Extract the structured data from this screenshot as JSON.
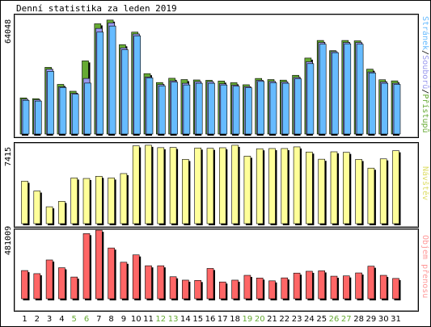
{
  "title": "Denní statistika za leden 2019",
  "colors": {
    "pristupu": "#66aa33",
    "souboru": "#9999ee",
    "stranek": "#66bbff",
    "navstev": "#ffff99",
    "prenos": "#ff6666",
    "weekend_label": "#66aa33",
    "weekday_label": "#000000"
  },
  "chart_data": [
    {
      "type": "bar",
      "name": "traffic",
      "ylabel": "64048",
      "ymax": 64048,
      "categories": [
        "1",
        "2",
        "3",
        "4",
        "5",
        "6",
        "7",
        "8",
        "9",
        "10",
        "11",
        "12",
        "13",
        "14",
        "15",
        "16",
        "17",
        "18",
        "19",
        "20",
        "21",
        "22",
        "23",
        "24",
        "25",
        "26",
        "27",
        "28",
        "29",
        "30",
        "31"
      ],
      "weekend_days": [
        "5",
        "6",
        "12",
        "13",
        "19",
        "20",
        "26",
        "27"
      ],
      "legend": [
        {
          "text": "Stránek",
          "color": "#66bbff"
        },
        {
          "text": "/",
          "color": "#000000"
        },
        {
          "text": "Souborů",
          "color": "#9999ee"
        },
        {
          "text": "/",
          "color": "#000000"
        },
        {
          "text": "Přístupů",
          "color": "#66aa33"
        }
      ],
      "series": [
        {
          "name": "Přístupů",
          "values": [
            19500,
            19100,
            36000,
            26800,
            23100,
            39500,
            59500,
            61500,
            48200,
            55000,
            32600,
            27800,
            30100,
            29400,
            29200,
            29000,
            28600,
            27700,
            26600,
            30000,
            29400,
            29100,
            31700,
            41000,
            50500,
            45000,
            50500,
            50300,
            35000,
            29300,
            28700
          ]
        },
        {
          "name": "Souborů",
          "values": [
            18800,
            18500,
            35000,
            25500,
            22000,
            30000,
            57000,
            60000,
            46500,
            54000,
            30800,
            26700,
            28700,
            27400,
            28300,
            28300,
            27100,
            26400,
            25600,
            29000,
            28400,
            28100,
            30500,
            39000,
            49400,
            44500,
            49400,
            49400,
            33500,
            28100,
            27400
          ]
        },
        {
          "name": "Stránek",
          "values": [
            18200,
            17800,
            33800,
            25100,
            21500,
            27500,
            55000,
            58300,
            45500,
            53000,
            30300,
            26000,
            28000,
            26500,
            27400,
            27400,
            26500,
            25800,
            25000,
            28400,
            27700,
            27400,
            29800,
            38000,
            48500,
            43900,
            48700,
            48500,
            33000,
            27400,
            26800
          ]
        }
      ]
    },
    {
      "type": "bar",
      "name": "visits",
      "ylabel": "7415",
      "ymax": 7415,
      "legend": [
        {
          "text": "Návštěv",
          "color": "#ffff99"
        }
      ],
      "series": [
        {
          "name": "Návštěv",
          "values": [
            3900,
            3000,
            1550,
            2050,
            4200,
            4150,
            4350,
            4200,
            4600,
            7150,
            7200,
            6980,
            7000,
            5900,
            6950,
            6920,
            6970,
            7200,
            6200,
            6880,
            6900,
            6900,
            7050,
            6580,
            5920,
            6600,
            6550,
            5900,
            5100,
            5950,
            6700
          ]
        }
      ]
    },
    {
      "type": "bar",
      "name": "bytes",
      "ylabel": "481009",
      "ymax": 481009,
      "legend": [
        {
          "text": "Objem přenosu",
          "color": "#ff6666"
        }
      ],
      "series": [
        {
          "name": "Objem přenosu",
          "values": [
            200000,
            178000,
            275000,
            220000,
            154000,
            462000,
            486000,
            360000,
            259000,
            311000,
            234000,
            234000,
            156000,
            132000,
            130000,
            215000,
            119000,
            132000,
            166000,
            147000,
            127000,
            148000,
            182000,
            195000,
            198000,
            160000,
            162000,
            183000,
            231000,
            166000,
            144000
          ]
        }
      ]
    }
  ]
}
